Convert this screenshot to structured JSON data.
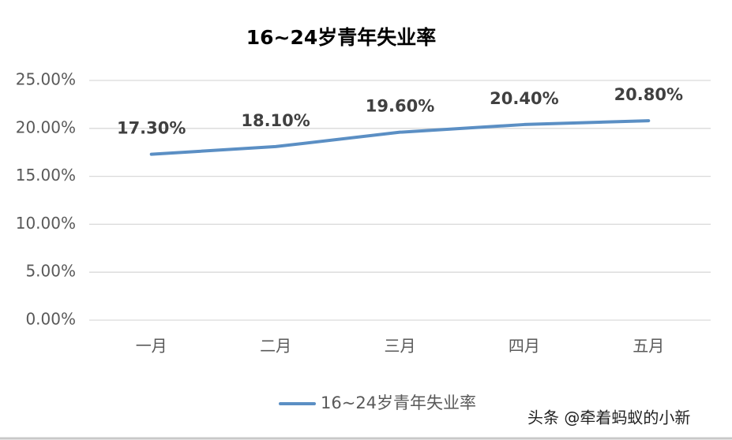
{
  "chart_data": {
    "type": "line",
    "title": "16~24岁青年失业率",
    "categories": [
      "一月",
      "二月",
      "三月",
      "四月",
      "五月"
    ],
    "series": [
      {
        "name": "16~24岁青年失业率",
        "color": "#5b8fc4",
        "values": [
          17.3,
          18.1,
          19.6,
          20.4,
          20.8
        ],
        "value_labels": [
          "17.30%",
          "18.10%",
          "19.60%",
          "20.40%",
          "20.80%"
        ]
      }
    ],
    "ylim": [
      0,
      25
    ],
    "yticks": [
      {
        "value": 0,
        "label": "0.00%"
      },
      {
        "value": 5,
        "label": "5.00%"
      },
      {
        "value": 10,
        "label": "10.00%"
      },
      {
        "value": 15,
        "label": "15.00%"
      },
      {
        "value": 20,
        "label": "20.00%"
      },
      {
        "value": 25,
        "label": "25.00%"
      }
    ],
    "grid": true,
    "legend": "bottom",
    "watermark": "头条 @牵着蚂蚁的小新"
  }
}
